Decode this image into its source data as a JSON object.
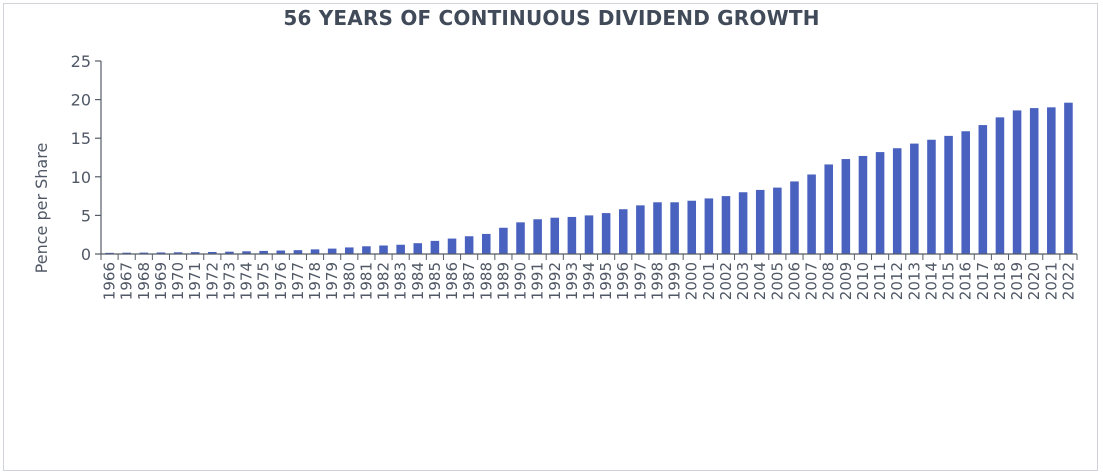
{
  "chart_data": {
    "type": "bar",
    "title": "56 YEARS OF CONTINUOUS DIVIDEND GROWTH",
    "xlabel": "",
    "ylabel": "Pence per Share",
    "ylim": [
      0,
      25
    ],
    "yticks": [
      0,
      5,
      10,
      15,
      20,
      25
    ],
    "grid": false,
    "legend": "none",
    "bar_color": "#4a62bf",
    "categories": [
      "1966",
      "1967",
      "1968",
      "1969",
      "1970",
      "1971",
      "1972",
      "1973",
      "1974",
      "1975",
      "1976",
      "1977",
      "1978",
      "1979",
      "1980",
      "1981",
      "1982",
      "1983",
      "1984",
      "1985",
      "1986",
      "1987",
      "1988",
      "1989",
      "1990",
      "1991",
      "1992",
      "1993",
      "1994",
      "1995",
      "1996",
      "1997",
      "1998",
      "1999",
      "2000",
      "2001",
      "2002",
      "2003",
      "2004",
      "2005",
      "2006",
      "2007",
      "2008",
      "2009",
      "2010",
      "2011",
      "2012",
      "2013",
      "2014",
      "2015",
      "2016",
      "2017",
      "2018",
      "2019",
      "2020",
      "2021",
      "2022"
    ],
    "values": [
      0.15,
      0.17,
      0.18,
      0.2,
      0.22,
      0.24,
      0.26,
      0.3,
      0.35,
      0.4,
      0.45,
      0.5,
      0.6,
      0.7,
      0.85,
      1.0,
      1.1,
      1.2,
      1.4,
      1.7,
      2.0,
      2.3,
      2.6,
      3.4,
      4.1,
      4.5,
      4.7,
      4.8,
      5.0,
      5.3,
      5.8,
      6.3,
      6.7,
      6.7,
      6.9,
      7.2,
      7.5,
      8.0,
      8.3,
      8.6,
      9.4,
      10.3,
      11.6,
      12.3,
      12.7,
      13.2,
      13.7,
      14.3,
      14.8,
      15.3,
      15.9,
      16.7,
      17.7,
      18.6,
      18.9,
      19.0,
      19.6
    ]
  }
}
